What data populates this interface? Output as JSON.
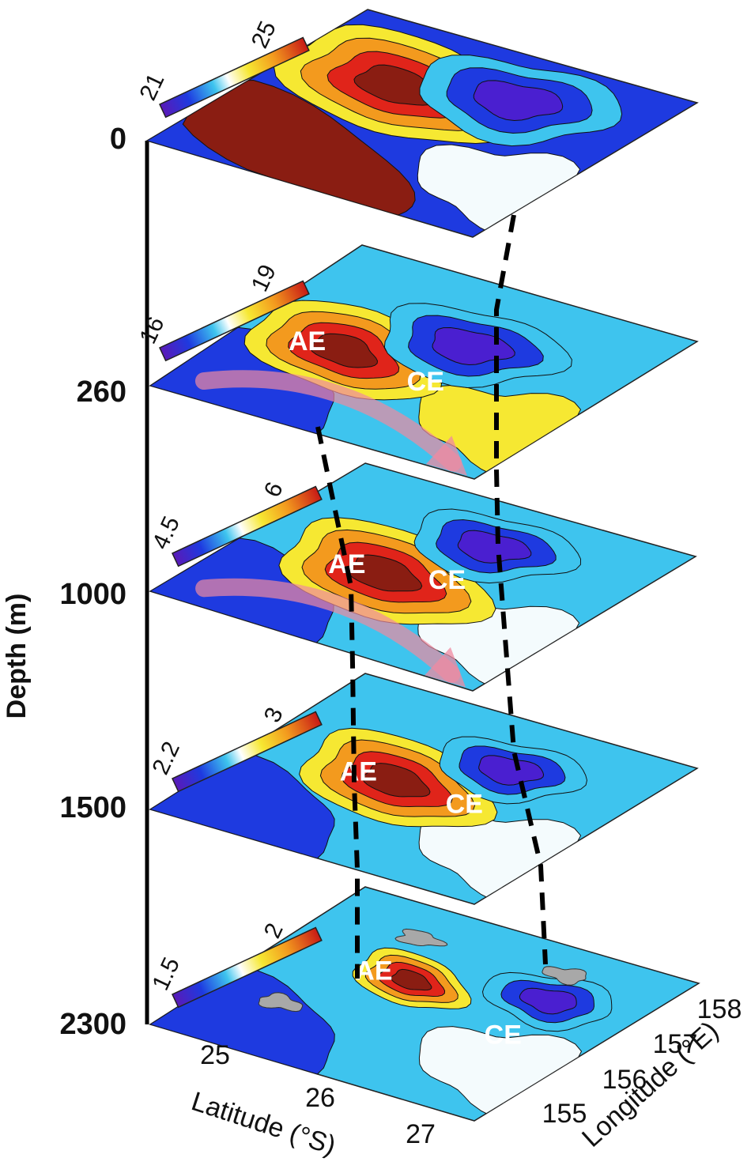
{
  "figure": {
    "y_axis_title": "Depth (m)",
    "x_axis_title": "Latitude (°S)",
    "z_axis_title": "Longitude (°E)",
    "latitude_ticks": [
      "25",
      "26",
      "27"
    ],
    "longitude_ticks": [
      "155",
      "156",
      "157",
      "158"
    ]
  },
  "layers": [
    {
      "depth": "0",
      "cb_min": "21",
      "cb_max": "25",
      "ae": "",
      "ce": "",
      "arrow": false
    },
    {
      "depth": "260",
      "cb_min": "16",
      "cb_max": "19",
      "ae": "AE",
      "ce": "CE",
      "arrow": true
    },
    {
      "depth": "1000",
      "cb_min": "4.5",
      "cb_max": "6",
      "ae": "AE",
      "ce": "CE",
      "arrow": true
    },
    {
      "depth": "1500",
      "cb_min": "2.2",
      "cb_max": "3",
      "ae": "AE",
      "ce": "CE",
      "arrow": false
    },
    {
      "depth": "2300",
      "cb_min": "1.5",
      "cb_max": "2",
      "ae": "AE",
      "ce": "CE",
      "arrow": false
    }
  ],
  "colors": {
    "cold": "#4a1fd0",
    "blue": "#1e3ae0",
    "cyan": "#3ec4ee",
    "white": "#f4fbfd",
    "yellow": "#f6e832",
    "orange": "#f39a1e",
    "red": "#e0241a",
    "dark_red": "#8a1d12",
    "arrow": "#f08aa0"
  }
}
